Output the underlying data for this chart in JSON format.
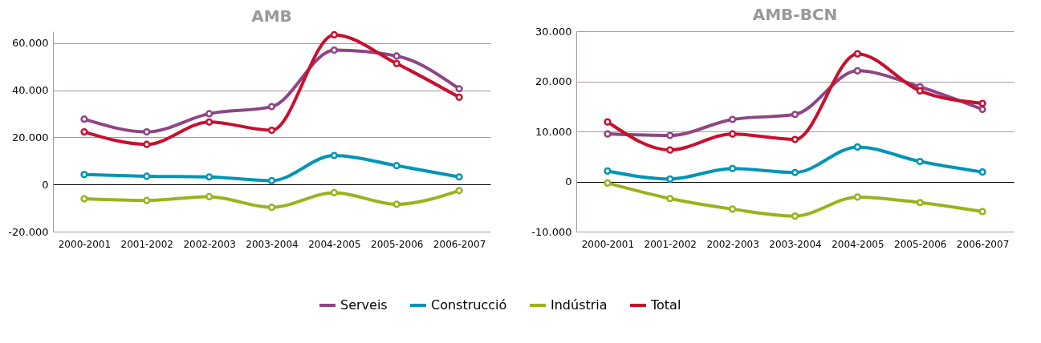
{
  "chart_data": [
    {
      "type": "line",
      "title": "AMB",
      "categories": [
        "2000-2001",
        "2001-2002",
        "2002-2003",
        "2003-2004",
        "2004-2005",
        "2005-2006",
        "2006-2007"
      ],
      "series": [
        {
          "name": "Serveis",
          "color": "#8e4585",
          "values": [
            27700,
            22300,
            30000,
            33000,
            57000,
            54500,
            40600
          ]
        },
        {
          "name": "Construcció",
          "color": "#0095b6",
          "values": [
            4200,
            3500,
            3200,
            1600,
            12300,
            8000,
            3200
          ]
        },
        {
          "name": "Indústria",
          "color": "#9bb21c",
          "values": [
            -6100,
            -6800,
            -5200,
            -9700,
            -3500,
            -8400,
            -2600
          ]
        },
        {
          "name": "Total",
          "color": "#c8102e",
          "values": [
            22300,
            17000,
            26500,
            23000,
            63500,
            51300,
            37000
          ]
        }
      ],
      "ylim": [
        -20000,
        65000
      ],
      "yticks": [
        {
          "value": -20000,
          "label": "-20.000"
        },
        0,
        {
          "value": 20000,
          "label": "20.000"
        },
        {
          "value": 40000,
          "label": "40.000"
        },
        {
          "value": 60000,
          "label": "60.000"
        }
      ],
      "grid": "y",
      "marker": "circle",
      "line_style": "solid",
      "legend": "bottom"
    },
    {
      "type": "line",
      "title": "AMB-BCN",
      "categories": [
        "2000-2001",
        "2001-2002",
        "2002-2003",
        "2003-2004",
        "2004-2005",
        "2005-2006",
        "2006-2007"
      ],
      "series": [
        {
          "name": "Serveis",
          "color": "#8e4585",
          "values": [
            9500,
            9200,
            12400,
            13400,
            22100,
            18900,
            14400
          ]
        },
        {
          "name": "Construcció",
          "color": "#0095b6",
          "values": [
            2100,
            500,
            2600,
            1800,
            6900,
            4000,
            1900
          ]
        },
        {
          "name": "Indústria",
          "color": "#9bb21c",
          "values": [
            -300,
            -3400,
            -5500,
            -6900,
            -3100,
            -4200,
            -6000
          ]
        },
        {
          "name": "Total",
          "color": "#c8102e",
          "values": [
            11900,
            6300,
            9500,
            8400,
            25500,
            18100,
            15600
          ]
        }
      ],
      "ylim": [
        -10000,
        30000
      ],
      "yticks": [
        {
          "value": -10000,
          "label": "-10.000"
        },
        0,
        {
          "value": 10000,
          "label": "10.000"
        },
        {
          "value": 20000,
          "label": "20.000"
        },
        {
          "value": 30000,
          "label": "30.000"
        }
      ],
      "grid": "y",
      "marker": "circle",
      "line_style": "solid",
      "legend": "bottom"
    }
  ]
}
